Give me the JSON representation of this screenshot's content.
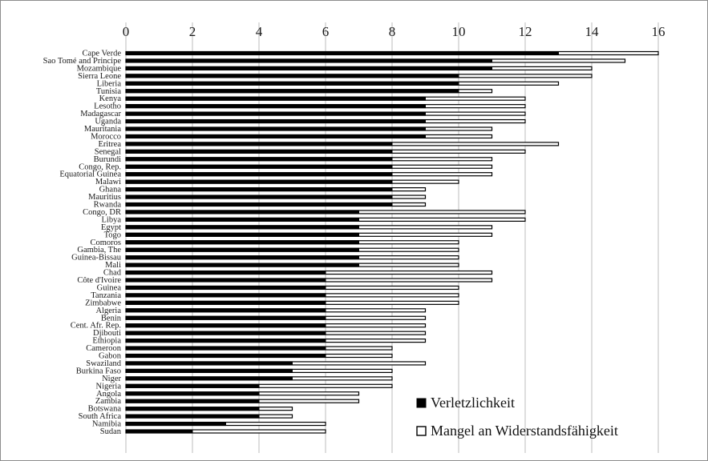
{
  "chart_data": {
    "type": "bar",
    "orientation": "horizontal",
    "title": "",
    "xlabel": "",
    "ylabel": "",
    "xlim": [
      0,
      17
    ],
    "xticks": [
      0,
      2,
      4,
      6,
      8,
      10,
      12,
      14,
      16
    ],
    "grid": true,
    "legend_position": "bottom-right",
    "colors": {
      "filled": "#000000",
      "hollow": "#ffffff",
      "outline": "#000000",
      "grid": "#bdbdbd"
    },
    "categories": [
      "Cape Verde",
      "Sao Tomé and Principe",
      "Mozambique",
      "Sierra Leone",
      "Liberia",
      "Tunisia",
      "Kenya",
      "Lesotho",
      "Madagascar",
      "Uganda",
      "Mauritania",
      "Morocco",
      "Eritrea",
      "Senegal",
      "Burundi",
      "Congo, Rep.",
      "Equatorial Guinea",
      "Malawi",
      "Ghana",
      "Mauritius",
      "Rwanda",
      "Congo, DR",
      "Libya",
      "Egypt",
      "Togo",
      "Comoros",
      "Gambia, The",
      "Guinea-Bissau",
      "Mali",
      "Chad",
      "Côte d'Ivoire",
      "Guinea",
      "Tanzania",
      "Zimbabwe",
      "Algeria",
      "Benin",
      "Cent. Afr. Rep.",
      "Djibouti",
      "Ethiopia",
      "Cameroon",
      "Gabon",
      "Swaziland",
      "Burkina Faso",
      "Niger",
      "Nigeria",
      "Angola",
      "Zambia",
      "Botswana",
      "South Africa",
      "Namibia",
      "Sudan"
    ],
    "series": [
      {
        "name": "Verletzlichkeit",
        "style": "filled",
        "values": [
          13,
          11,
          11,
          10,
          10,
          10,
          9,
          9,
          9,
          9,
          9,
          9,
          8,
          8,
          8,
          8,
          8,
          8,
          8,
          8,
          8,
          7,
          7,
          7,
          7,
          7,
          7,
          7,
          7,
          6,
          6,
          6,
          6,
          6,
          6,
          6,
          6,
          6,
          6,
          6,
          6,
          5,
          5,
          5,
          4,
          4,
          4,
          4,
          4,
          3,
          2
        ]
      },
      {
        "name": "Mangel an Widerstandsfähigkeit",
        "style": "hollow",
        "values": [
          16,
          15,
          14,
          14,
          13,
          11,
          12,
          12,
          12,
          12,
          11,
          11,
          13,
          12,
          11,
          11,
          11,
          10,
          9,
          9,
          9,
          12,
          12,
          11,
          11,
          10,
          10,
          10,
          10,
          11,
          11,
          10,
          10,
          10,
          9,
          9,
          9,
          9,
          9,
          8,
          8,
          9,
          8,
          8,
          8,
          7,
          7,
          5,
          5,
          6,
          6
        ]
      }
    ]
  }
}
